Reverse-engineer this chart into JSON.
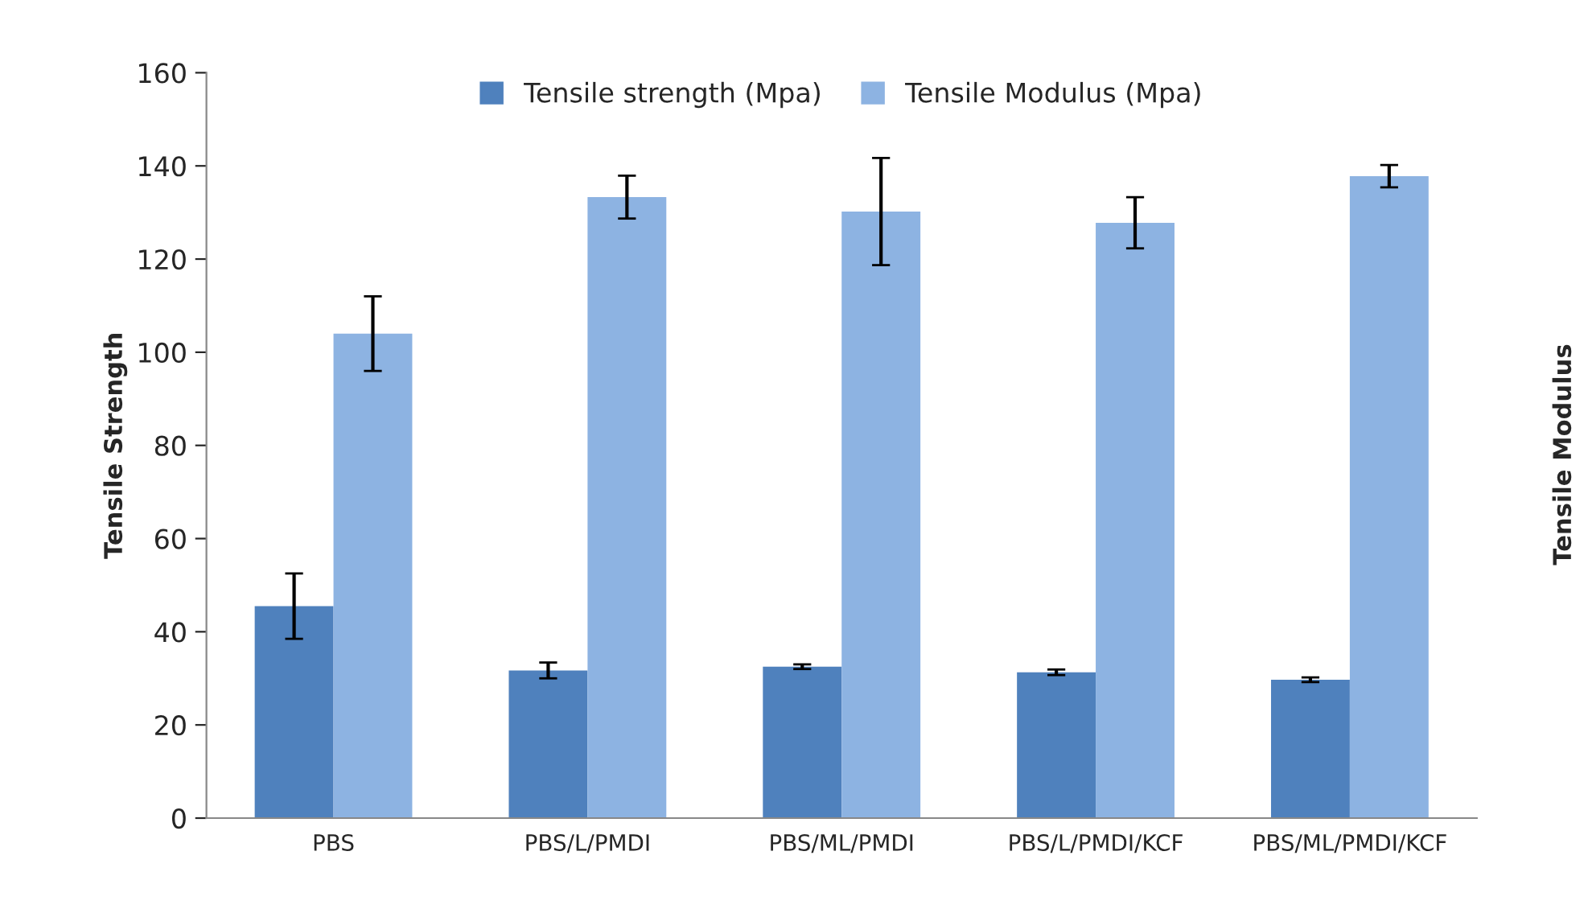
{
  "chart_data": {
    "type": "bar",
    "ylabel": "Tensile Strength",
    "y2label": "Tensile Modulus",
    "categories": [
      "PBS",
      "PBS/L/PMDI",
      "PBS/ML/PMDI",
      "PBS/L/PMDI/KCF",
      "PBS/ML/PMDI/KCF"
    ],
    "series": [
      {
        "name": "Tensile strength (Mpa)",
        "color": "#4f81bd",
        "values": [
          45.5,
          31.7,
          32.5,
          31.3,
          29.7
        ],
        "errors": [
          7,
          1.7,
          0.5,
          0.6,
          0.5
        ]
      },
      {
        "name": "Tensile Modulus (Mpa)",
        "color": "#8db3e2",
        "values": [
          104,
          133.3,
          130.2,
          127.8,
          137.8
        ],
        "errors": [
          8,
          4.6,
          11.5,
          5.5,
          2.4
        ]
      }
    ],
    "ylim": [
      0,
      160
    ],
    "yticks": [
      0,
      20,
      40,
      60,
      80,
      100,
      120,
      140,
      160
    ],
    "legend": "top",
    "grid": false
  }
}
